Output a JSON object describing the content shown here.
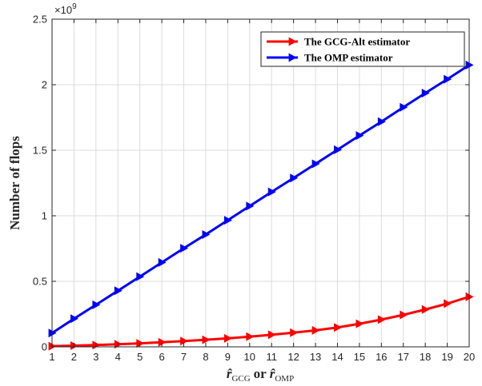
{
  "chart_data": {
    "type": "line",
    "x": [
      1,
      2,
      3,
      4,
      5,
      6,
      7,
      8,
      9,
      10,
      11,
      12,
      13,
      14,
      15,
      16,
      17,
      18,
      19,
      20
    ],
    "xlim": [
      1,
      20
    ],
    "ylim": [
      0,
      2.5
    ],
    "y_exponent_label": "×10",
    "y_exponent": "9",
    "xticks": [
      "1",
      "2",
      "3",
      "4",
      "5",
      "6",
      "7",
      "8",
      "9",
      "10",
      "11",
      "12",
      "13",
      "14",
      "15",
      "16",
      "17",
      "18",
      "19",
      "20"
    ],
    "yticks": [
      {
        "value": 0,
        "label": "0"
      },
      {
        "value": 0.5,
        "label": "0.5"
      },
      {
        "value": 1,
        "label": "1"
      },
      {
        "value": 1.5,
        "label": "1.5"
      },
      {
        "value": 2,
        "label": "2"
      },
      {
        "value": 2.5,
        "label": "2.5"
      }
    ],
    "ylabel": "Number of flops",
    "xlabel_main": "r̂",
    "xlabel_sub1": "GCG",
    "xlabel_or": "or",
    "xlabel_sub2": "OMP",
    "grid": true,
    "legend_position": "top-right",
    "series": [
      {
        "name": "The GCG-Alt estimator",
        "color": "#ff0000",
        "marker": "triangle-right",
        "values": [
          0.005,
          0.009,
          0.014,
          0.02,
          0.027,
          0.035,
          0.044,
          0.054,
          0.065,
          0.078,
          0.092,
          0.108,
          0.126,
          0.148,
          0.176,
          0.208,
          0.244,
          0.285,
          0.33,
          0.382
        ]
      },
      {
        "name": "The OMP estimator",
        "color": "#0000ff",
        "marker": "triangle-right",
        "values": [
          0.105,
          0.215,
          0.321,
          0.428,
          0.536,
          0.644,
          0.752,
          0.857,
          0.966,
          1.074,
          1.182,
          1.288,
          1.396,
          1.504,
          1.612,
          1.718,
          1.828,
          1.936,
          2.042,
          2.15
        ]
      }
    ]
  }
}
